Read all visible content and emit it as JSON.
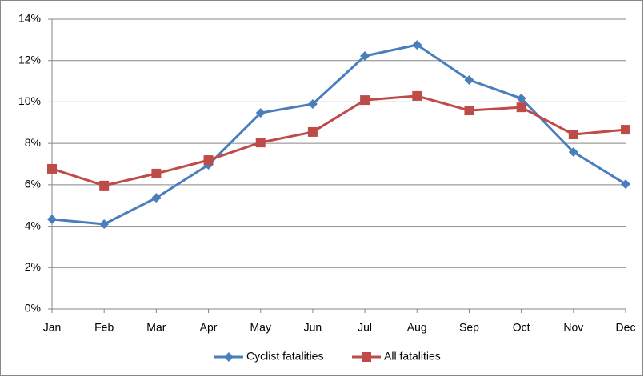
{
  "chart_data": {
    "type": "line",
    "categories": [
      "Jan",
      "Feb",
      "Mar",
      "Apr",
      "May",
      "Jun",
      "Jul",
      "Aug",
      "Sep",
      "Oct",
      "Nov",
      "Dec"
    ],
    "series": [
      {
        "name": "Cyclist fatalities",
        "color": "#4a7ebb",
        "marker": "diamond",
        "values": [
          4.33,
          4.1,
          5.37,
          6.96,
          9.47,
          9.9,
          12.22,
          12.76,
          11.06,
          10.17,
          7.58,
          6.03
        ]
      },
      {
        "name": "All fatalities",
        "color": "#be4b48",
        "marker": "square",
        "values": [
          6.77,
          5.96,
          6.54,
          7.19,
          8.04,
          8.55,
          10.09,
          10.29,
          9.59,
          9.74,
          8.43,
          8.66
        ]
      }
    ],
    "ylim": [
      0,
      14
    ],
    "yticks": [
      {
        "value": 0,
        "label": "0%"
      },
      {
        "value": 2,
        "label": "2%"
      },
      {
        "value": 4,
        "label": "4%"
      },
      {
        "value": 6,
        "label": "6%"
      },
      {
        "value": 8,
        "label": "8%"
      },
      {
        "value": 10,
        "label": "10%"
      },
      {
        "value": 12,
        "label": "12%"
      },
      {
        "value": 14,
        "label": "14%"
      }
    ],
    "grid": true,
    "legend": "bottom"
  }
}
